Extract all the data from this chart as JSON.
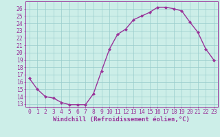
{
  "x": [
    0,
    1,
    2,
    3,
    4,
    5,
    6,
    7,
    8,
    9,
    10,
    11,
    12,
    13,
    14,
    15,
    16,
    17,
    18,
    19,
    20,
    21,
    22,
    23
  ],
  "y": [
    16.5,
    15.0,
    14.0,
    13.8,
    13.2,
    12.9,
    12.9,
    12.9,
    14.4,
    17.5,
    20.5,
    22.5,
    23.2,
    24.5,
    25.0,
    25.5,
    26.2,
    26.2,
    26.0,
    25.7,
    24.2,
    22.8,
    20.5,
    19.0
  ],
  "line_color": "#993399",
  "marker": "D",
  "marker_size": 2.0,
  "line_width": 1.0,
  "bg_color": "#cceee8",
  "grid_color": "#99cccc",
  "xlabel": "Windchill (Refroidissement éolien,°C)",
  "xlabel_color": "#993399",
  "ylabel_ticks": [
    13,
    14,
    15,
    16,
    17,
    18,
    19,
    20,
    21,
    22,
    23,
    24,
    25,
    26
  ],
  "ylim": [
    12.6,
    27.0
  ],
  "xlim": [
    -0.5,
    23.5
  ],
  "tick_color": "#993399",
  "tick_label_color": "#993399",
  "spine_color": "#993399",
  "font_size": 5.8,
  "xlabel_font_size": 6.5
}
